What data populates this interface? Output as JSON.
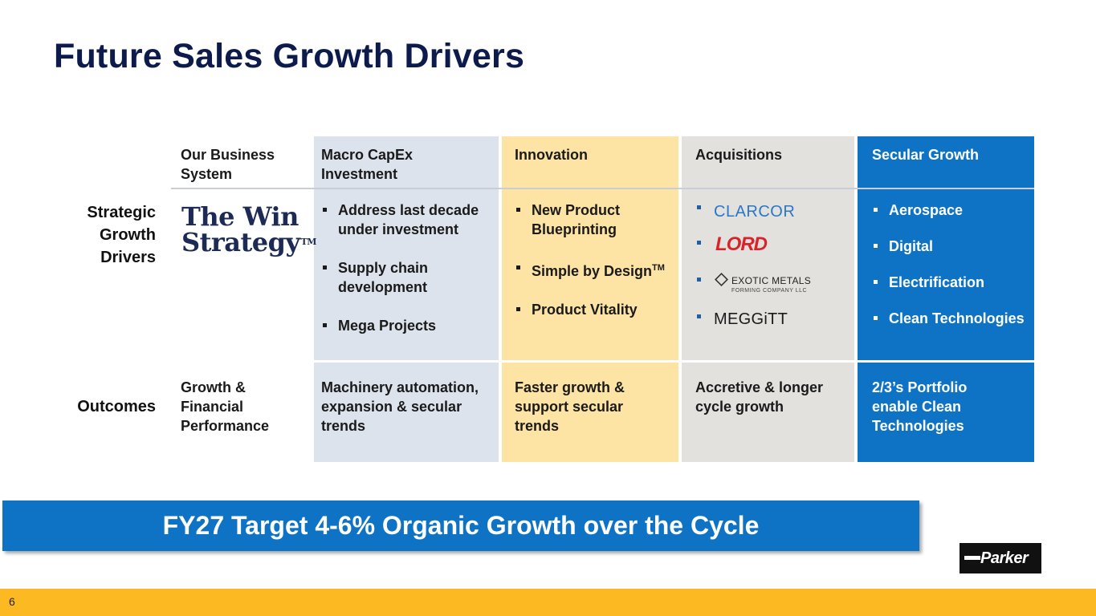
{
  "title": "Future Sales Growth Drivers",
  "row_labels": {
    "strategic": "Strategic Growth Drivers",
    "outcomes": "Outcomes"
  },
  "columns": [
    {
      "header": "Our Business System",
      "logo": [
        "The Win",
        "Strategy",
        "TM"
      ],
      "outcome": "Growth & Financial Performance"
    },
    {
      "header": "Macro CapEx Investment",
      "bullets": [
        "Address last decade under investment",
        "Supply chain development",
        "Mega Projects"
      ],
      "outcome": "Machinery automation, expansion & secular trends",
      "color": "#dde3ec"
    },
    {
      "header": "Innovation",
      "bullets": [
        "New Product Blueprinting",
        "Simple by Design",
        "Product Vitality"
      ],
      "bullet_superscript": "TM",
      "outcome": "Faster growth & support secular trends",
      "color": "#fde3a4"
    },
    {
      "header": "Acquisitions",
      "logos": [
        "CLARCOR",
        "LORD",
        "EXOTIC METALS",
        "FORMING COMPANY LLC",
        "MEGGiTT"
      ],
      "outcome": "Accretive & longer cycle growth",
      "color": "#e2e1de"
    },
    {
      "header": "Secular Growth",
      "bullets": [
        "Aerospace",
        "Digital",
        "Electrification",
        "Clean Technologies"
      ],
      "outcome": "2/3’s Portfolio enable Clean Technologies",
      "color": "#0f73c5"
    }
  ],
  "banner": "FY27 Target 4-6% Organic Growth over the Cycle",
  "brand": "Parker",
  "page_number": "6",
  "colors": {
    "title": "#0d1b4c",
    "footer": "#fcb922",
    "banner": "#0f73c5"
  }
}
